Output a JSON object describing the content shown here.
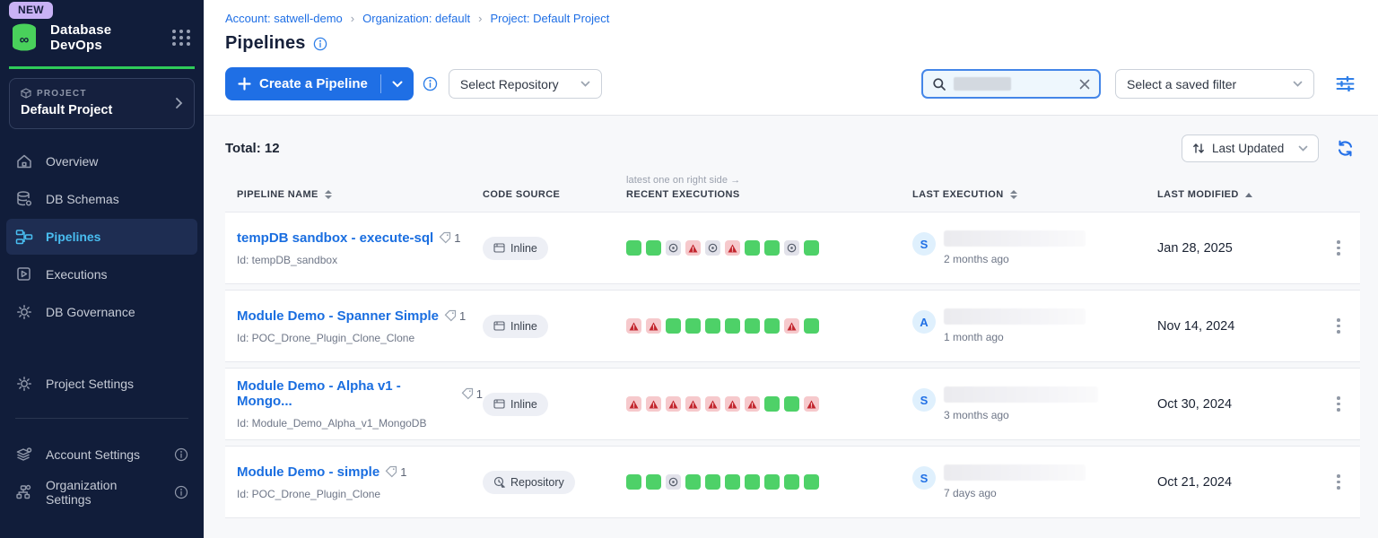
{
  "sidebar": {
    "new_badge": "NEW",
    "app_title": "Database DevOps",
    "project": {
      "label": "PROJECT",
      "name": "Default Project"
    },
    "nav": [
      {
        "label": "Overview"
      },
      {
        "label": "DB Schemas"
      },
      {
        "label": "Pipelines"
      },
      {
        "label": "Executions"
      },
      {
        "label": "DB Governance"
      },
      {
        "label": "Project Settings"
      },
      {
        "label": "Account Settings"
      },
      {
        "label": "Organization Settings"
      }
    ]
  },
  "header": {
    "breadcrumb": [
      {
        "label": "Account: satwell-demo"
      },
      {
        "label": "Organization: default"
      },
      {
        "label": "Project: Default Project"
      }
    ],
    "title": "Pipelines"
  },
  "toolbar": {
    "create_button": "Create a Pipeline",
    "select_repository": "Select Repository",
    "saved_filter_placeholder": "Select a saved filter"
  },
  "list": {
    "total_label": "Total: 12",
    "sort_label": "Last Updated",
    "executions_hint": "latest one on right side →",
    "columns": {
      "pipeline_name": "PIPELINE NAME",
      "code_source": "CODE SOURCE",
      "recent_executions": "RECENT EXECUTIONS",
      "last_execution": "LAST EXECUTION",
      "last_modified": "LAST MODIFIED"
    },
    "rows": [
      {
        "name": "tempDB sandbox - execute-sql",
        "tag_count": "1",
        "id": "Id: tempDB_sandbox",
        "code_source": "Inline",
        "executions": [
          "success",
          "success",
          "skipped",
          "failed",
          "skipped",
          "failed",
          "success",
          "success",
          "skipped",
          "success"
        ],
        "last_exec_initial": "S",
        "last_exec_time": "2 months ago",
        "last_modified": "Jan 28, 2025"
      },
      {
        "name": "Module Demo - Spanner Simple",
        "tag_count": "1",
        "id": "Id: POC_Drone_Plugin_Clone_Clone",
        "code_source": "Inline",
        "executions": [
          "failed",
          "failed",
          "success",
          "success",
          "success",
          "success",
          "success",
          "success",
          "failed",
          "success"
        ],
        "last_exec_initial": "A",
        "last_exec_time": "1 month ago",
        "last_modified": "Nov 14, 2024"
      },
      {
        "name": "Module Demo - Alpha v1 - Mongo...",
        "tag_count": "1",
        "id": "Id: Module_Demo_Alpha_v1_MongoDB",
        "code_source": "Inline",
        "executions": [
          "failed",
          "failed",
          "failed",
          "failed",
          "failed",
          "failed",
          "failed",
          "success",
          "success",
          "failed"
        ],
        "last_exec_initial": "S",
        "last_exec_time": "3 months ago",
        "last_modified": "Oct 30, 2024"
      },
      {
        "name": "Module Demo - simple",
        "tag_count": "1",
        "id": "Id: POC_Drone_Plugin_Clone",
        "code_source": "Repository",
        "executions": [
          "success",
          "success",
          "skipped",
          "success",
          "success",
          "success",
          "success",
          "success",
          "success",
          "success"
        ],
        "last_exec_initial": "S",
        "last_exec_time": "7 days ago",
        "last_modified": "Oct 21, 2024"
      }
    ]
  },
  "colors": {
    "sidebar_bg": "#111d3a",
    "accent_blue": "#1f6fe5",
    "brand_green": "#2fcb5a",
    "success_green": "#4ed168",
    "failed_red_bg": "#f6c9cc",
    "failed_red_icon": "#c2242c",
    "skipped_gray_bg": "#e2e2ea",
    "active_nav_cyan": "#49bdf0"
  }
}
